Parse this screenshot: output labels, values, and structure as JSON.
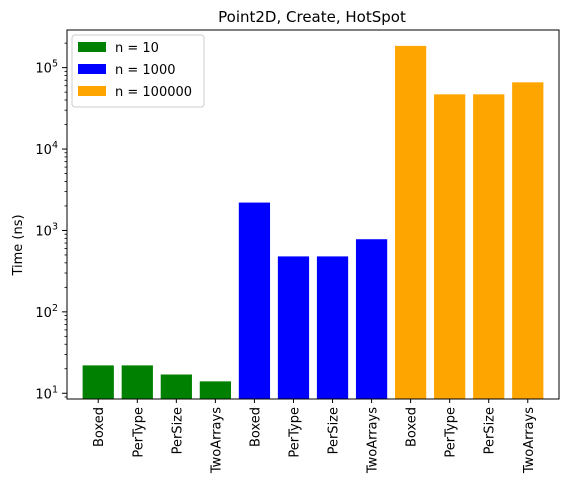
{
  "chart_data": {
    "type": "bar",
    "title": "Point2D, Create, HotSpot",
    "xlabel": "",
    "ylabel": "Time (ns)",
    "yscale": "log",
    "ylim": [
      8.5,
      290000
    ],
    "yticks": [
      {
        "value": 10,
        "base": "10",
        "exp": "1"
      },
      {
        "value": 100,
        "base": "10",
        "exp": "2"
      },
      {
        "value": 1000,
        "base": "10",
        "exp": "3"
      },
      {
        "value": 10000,
        "base": "10",
        "exp": "4"
      },
      {
        "value": 100000,
        "base": "10",
        "exp": "5"
      }
    ],
    "grid": false,
    "legend_position": "top-left",
    "series": [
      {
        "name": "n = 10",
        "color": "#008000",
        "categories": [
          "Boxed",
          "PerType",
          "PerSize",
          "TwoArrays"
        ],
        "values": [
          22,
          22,
          17,
          14
        ]
      },
      {
        "name": "n = 1000",
        "color": "#0000ff",
        "categories": [
          "Boxed",
          "PerType",
          "PerSize",
          "TwoArrays"
        ],
        "values": [
          2200,
          480,
          480,
          780
        ]
      },
      {
        "name": "n = 100000",
        "color": "#ffa500",
        "categories": [
          "Boxed",
          "PerType",
          "PerSize",
          "TwoArrays"
        ],
        "values": [
          185000,
          47000,
          47000,
          66000
        ]
      }
    ]
  }
}
